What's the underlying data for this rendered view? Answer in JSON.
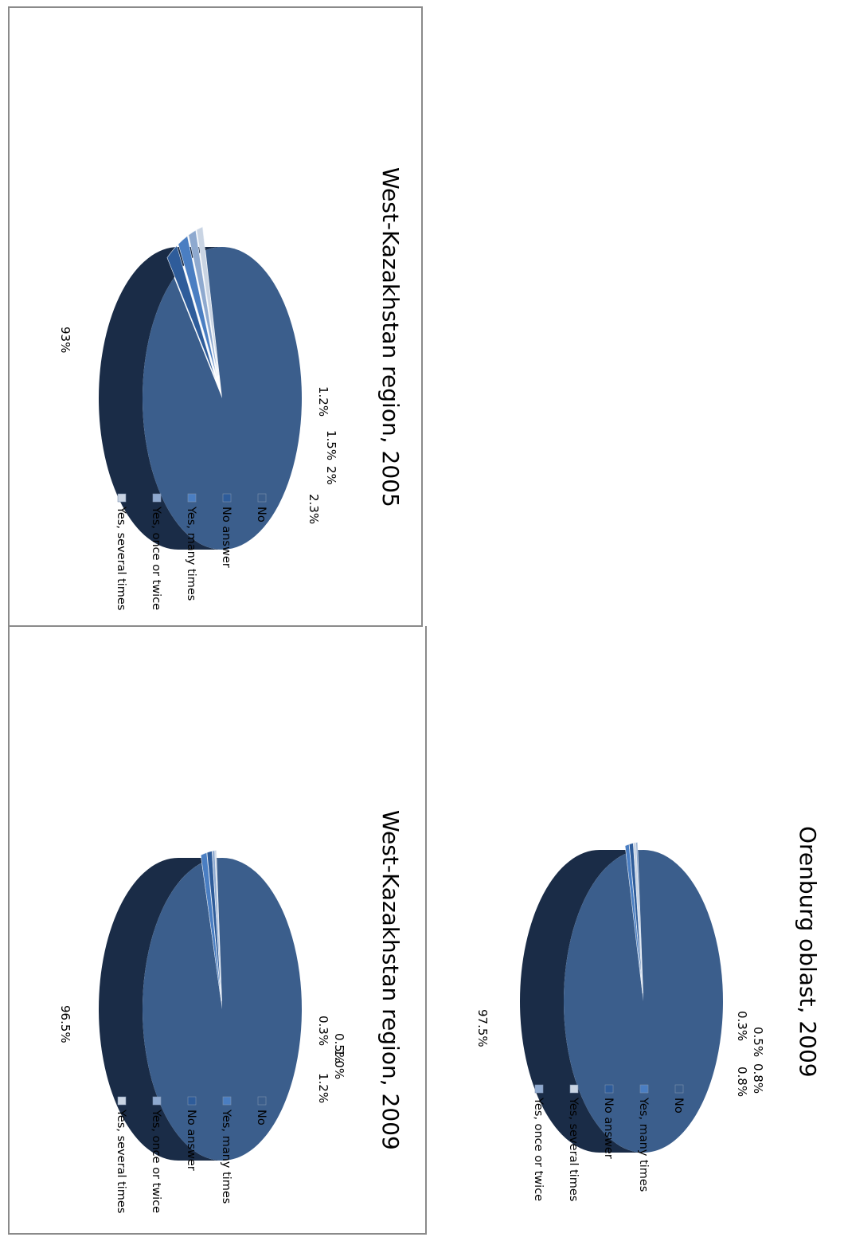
{
  "colors": {
    "no_top": "#3b5e8c",
    "no_side": "#1a2c47",
    "yes_many": "#4a7ec2",
    "no_answer": "#2e5c9a",
    "yes_once": "#8ea9cf",
    "yes_several": "#c9d4e3",
    "frame": "#8a8a8a"
  },
  "chart_data": [
    {
      "type": "pie",
      "title": "West-Kazakhstan region, 2005",
      "slices": [
        {
          "name": "No",
          "value": 93,
          "label": "93%",
          "color_key": "no_top"
        },
        {
          "name": "No answer",
          "value": 2.3,
          "label": "2.3%",
          "color_key": "no_answer"
        },
        {
          "name": "Yes, many times",
          "value": 2,
          "label": "2%",
          "color_key": "yes_many"
        },
        {
          "name": "Yes, once or twice",
          "value": 1.5,
          "label": "1.5%",
          "color_key": "yes_once"
        },
        {
          "name": "Yes, several times",
          "value": 1.2,
          "label": "1.2%",
          "color_key": "yes_several"
        }
      ],
      "legend": [
        "No",
        "No answer",
        "Yes, many times",
        "Yes, once or twice",
        "Yes, several times"
      ],
      "legend_position": "right"
    },
    {
      "type": "pie",
      "title": "West-Kazakhstan region, 2009",
      "slices": [
        {
          "name": "No",
          "value": 96.5,
          "label": "96.5%",
          "color_key": "no_top"
        },
        {
          "name": "Yes, many times",
          "value": 1.2,
          "label": "1.2%",
          "color_key": "yes_many"
        },
        {
          "name": "No answer",
          "value": 1.0,
          "label": "1.0%",
          "color_key": "no_answer"
        },
        {
          "name": "Yes, once or twice",
          "value": 0.5,
          "label": "0.5%",
          "color_key": "yes_once"
        },
        {
          "name": "Yes, several times",
          "value": 0.3,
          "label": "0.3%",
          "color_key": "yes_several"
        }
      ],
      "legend": [
        "No",
        "Yes, many times",
        "No answer",
        "Yes, once or twice",
        "Yes, several times"
      ],
      "legend_position": "right"
    },
    {
      "type": "pie",
      "title": "Orenburg oblast, 2009",
      "slices": [
        {
          "name": "No",
          "value": 97.5,
          "label": "97.5%",
          "color_key": "no_top"
        },
        {
          "name": "Yes, many times",
          "value": 0.8,
          "label": "0.8%",
          "color_key": "yes_many"
        },
        {
          "name": "No answer",
          "value": 0.8,
          "label": "0.8%",
          "color_key": "no_answer"
        },
        {
          "name": "Yes, several times",
          "value": 0.5,
          "label": "0.5%",
          "color_key": "yes_several"
        },
        {
          "name": "Yes, once or twice",
          "value": 0.3,
          "label": "0.3%",
          "color_key": "yes_once"
        }
      ],
      "legend": [
        "No",
        "Yes, many times",
        "No answer",
        "Yes, several times",
        "Yes, once or twice"
      ],
      "legend_position": "right"
    }
  ]
}
